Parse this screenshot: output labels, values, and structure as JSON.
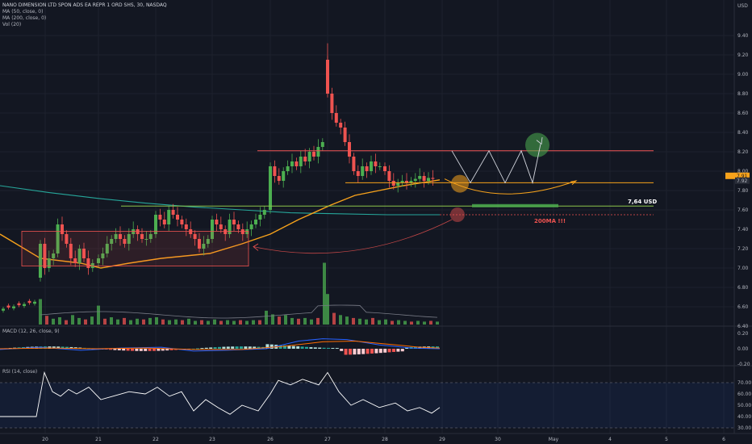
{
  "header": {
    "symbol": "NANO DIMENSION LTD SPON ADS EA REPR 1 ORD SHS, 30, NASDAQ",
    "ind_ma50": "MA (50, close, 0)",
    "ind_ma200": "MA (200, close, 0)",
    "ind_vol": "Vol (20)",
    "macd_label": "MACD (12, 26, close, 9)",
    "rsi_label": "RSI (14, close)"
  },
  "price_axis": {
    "currency": "USD",
    "ticks": [
      "9.40",
      "9.20",
      "9.00",
      "8.80",
      "8.60",
      "8.40",
      "8.20",
      "8.00",
      "7.80",
      "7.60",
      "7.40",
      "7.20",
      "7.00",
      "6.80",
      "6.60",
      "6.40"
    ],
    "tick_values": [
      9.4,
      9.2,
      9.0,
      8.8,
      8.6,
      8.4,
      8.2,
      8.0,
      7.8,
      7.6,
      7.4,
      7.2,
      7.0,
      6.8,
      6.6,
      6.4
    ],
    "last_price_label": "7.92",
    "ma_badge_label": "7.91"
  },
  "macd_axis": {
    "ticks": [
      "0.20",
      "0.00",
      "-0.20"
    ],
    "tick_values": [
      0.2,
      0.0,
      -0.2
    ]
  },
  "rsi_axis": {
    "ticks": [
      "70.00",
      "60.00",
      "50.00",
      "40.00",
      "30.00"
    ],
    "tick_values": [
      70,
      60,
      50,
      40,
      30
    ]
  },
  "time_axis": {
    "labels": [
      "20",
      "21",
      "22",
      "23",
      "26",
      "27",
      "28",
      "29",
      "30",
      "May",
      "4",
      "5",
      "6"
    ],
    "label_x": [
      56,
      122,
      193,
      263,
      335,
      406,
      477,
      548,
      617,
      686,
      756,
      826,
      897
    ]
  },
  "annotations": {
    "support_level": "7,64 USD",
    "ma200_label": "200MA !!!"
  },
  "colors": {
    "background": "#131722",
    "up": "#26a69a",
    "candle_up": "#4caf50",
    "down": "#ef5350",
    "ma50": "#f7a21b",
    "ma200": "#26a69a",
    "resistance": "#f05454",
    "support_green": "#4caf50",
    "text": "#d1d4dc"
  },
  "chart_data": {
    "type": "candlestick",
    "title": "NANO DIMENSION LTD SPON ADS EA REPR 1 ORD SHS, 30, NASDAQ",
    "timeframe": "30 min",
    "y_range": [
      6.3,
      9.5
    ],
    "levels": {
      "resistance": 8.21,
      "mid": 7.88,
      "support": 7.64,
      "ma200_projection": 7.55
    },
    "sessions": [
      {
        "day": "20",
        "start": 50,
        "opens": [
          6.9,
          7.25,
          7.0,
          7.1,
          7.15,
          7.45,
          7.35,
          7.25,
          7.1,
          7.05,
          7.2,
          7.1,
          7.0
        ],
        "closes": [
          7.25,
          7.0,
          7.1,
          7.15,
          7.45,
          7.35,
          7.25,
          7.1,
          7.05,
          7.2,
          7.1,
          7.0,
          7.05
        ]
      },
      {
        "day": "21",
        "start": 122,
        "opens": [
          7.05,
          7.1,
          7.15,
          7.25,
          7.3,
          7.35,
          7.3,
          7.25,
          7.35,
          7.4,
          7.35,
          7.3,
          7.3
        ],
        "closes": [
          7.1,
          7.15,
          7.25,
          7.3,
          7.35,
          7.3,
          7.25,
          7.35,
          7.4,
          7.35,
          7.3,
          7.3,
          7.35
        ]
      },
      {
        "day": "22",
        "start": 193,
        "opens": [
          7.35,
          7.55,
          7.5,
          7.45,
          7.6,
          7.55,
          7.5,
          7.45,
          7.4,
          7.35,
          7.3,
          7.2,
          7.25
        ],
        "closes": [
          7.55,
          7.5,
          7.45,
          7.6,
          7.55,
          7.5,
          7.45,
          7.4,
          7.35,
          7.3,
          7.2,
          7.25,
          7.3
        ]
      },
      {
        "day": "23",
        "start": 263,
        "opens": [
          7.3,
          7.5,
          7.45,
          7.4,
          7.35,
          7.5,
          7.45,
          7.4,
          7.35,
          7.4,
          7.45,
          7.5,
          7.55
        ],
        "closes": [
          7.5,
          7.45,
          7.4,
          7.35,
          7.5,
          7.45,
          7.4,
          7.35,
          7.4,
          7.45,
          7.5,
          7.55,
          7.6
        ]
      },
      {
        "day": "26",
        "start": 335,
        "opens": [
          7.6,
          8.05,
          7.95,
          7.9,
          8.0,
          8.05,
          8.1,
          8.05,
          8.15,
          8.1,
          8.2,
          8.15,
          8.25
        ],
        "closes": [
          8.05,
          7.95,
          7.9,
          8.0,
          8.05,
          8.1,
          8.05,
          8.15,
          8.1,
          8.2,
          8.15,
          8.25,
          8.3
        ]
      },
      {
        "day": "27",
        "start": 406,
        "opens": [
          9.15,
          8.8,
          8.6,
          8.5,
          8.45,
          8.3,
          8.15,
          8.0,
          7.95,
          8.05,
          8.0,
          8.1,
          8.05
        ],
        "closes": [
          8.8,
          8.6,
          8.5,
          8.45,
          8.3,
          8.15,
          8.0,
          7.95,
          8.05,
          8.0,
          8.1,
          8.05,
          8.05
        ]
      },
      {
        "day": "28",
        "start": 477,
        "opens": [
          8.05,
          8.0,
          7.9,
          7.85,
          7.88,
          7.9,
          7.88,
          7.9,
          7.92,
          7.95,
          7.9,
          7.93
        ],
        "closes": [
          8.0,
          7.9,
          7.85,
          7.88,
          7.9,
          7.88,
          7.9,
          7.92,
          7.95,
          7.9,
          7.93,
          7.92
        ]
      }
    ],
    "ma50": [
      [
        0,
        7.35
      ],
      [
        50,
        7.1
      ],
      [
        100,
        7.05
      ],
      [
        125,
        7.0
      ],
      [
        160,
        7.05
      ],
      [
        200,
        7.1
      ],
      [
        260,
        7.15
      ],
      [
        300,
        7.25
      ],
      [
        335,
        7.35
      ],
      [
        370,
        7.5
      ],
      [
        410,
        7.65
      ],
      [
        440,
        7.75
      ],
      [
        470,
        7.8
      ],
      [
        500,
        7.85
      ],
      [
        545,
        7.91
      ]
    ],
    "ma200": [
      [
        0,
        7.85
      ],
      [
        60,
        7.78
      ],
      [
        120,
        7.72
      ],
      [
        180,
        7.67
      ],
      [
        240,
        7.63
      ],
      [
        300,
        7.6
      ],
      [
        360,
        7.57
      ],
      [
        420,
        7.56
      ],
      [
        480,
        7.55
      ],
      [
        545,
        7.55
      ]
    ],
    "macd": [
      [
        0,
        -0.01
      ],
      [
        50,
        0.02
      ],
      [
        100,
        -0.02
      ],
      [
        150,
        0.01
      ],
      [
        200,
        0.02
      ],
      [
        240,
        -0.03
      ],
      [
        280,
        -0.02
      ],
      [
        330,
        0.0
      ],
      [
        370,
        0.1
      ],
      [
        400,
        0.13
      ],
      [
        430,
        0.12
      ],
      [
        470,
        0.05
      ],
      [
        510,
        0.01
      ],
      [
        545,
        0.0
      ]
    ],
    "macd_signal": [
      [
        0,
        0.0
      ],
      [
        60,
        0.01
      ],
      [
        120,
        0.0
      ],
      [
        180,
        0.01
      ],
      [
        240,
        -0.01
      ],
      [
        300,
        -0.01
      ],
      [
        350,
        0.03
      ],
      [
        400,
        0.09
      ],
      [
        440,
        0.1
      ],
      [
        480,
        0.06
      ],
      [
        520,
        0.02
      ],
      [
        545,
        0.01
      ]
    ],
    "rsi": [
      [
        0,
        40
      ],
      [
        45,
        40
      ],
      [
        55,
        79
      ],
      [
        65,
        62
      ],
      [
        75,
        58
      ],
      [
        85,
        64
      ],
      [
        95,
        60
      ],
      [
        110,
        66
      ],
      [
        125,
        55
      ],
      [
        140,
        58
      ],
      [
        160,
        62
      ],
      [
        180,
        60
      ],
      [
        195,
        66
      ],
      [
        210,
        58
      ],
      [
        225,
        62
      ],
      [
        240,
        45
      ],
      [
        255,
        55
      ],
      [
        270,
        48
      ],
      [
        285,
        42
      ],
      [
        300,
        50
      ],
      [
        320,
        45
      ],
      [
        335,
        60
      ],
      [
        345,
        72
      ],
      [
        360,
        68
      ],
      [
        375,
        73
      ],
      [
        395,
        68
      ],
      [
        406,
        79
      ],
      [
        420,
        62
      ],
      [
        435,
        50
      ],
      [
        450,
        55
      ],
      [
        470,
        48
      ],
      [
        490,
        52
      ],
      [
        505,
        45
      ],
      [
        520,
        48
      ],
      [
        535,
        43
      ],
      [
        545,
        48
      ]
    ],
    "volume": [
      [
        50,
        3.5
      ],
      [
        58,
        1.2
      ],
      [
        66,
        0.8
      ],
      [
        74,
        1.0
      ],
      [
        82,
        0.6
      ],
      [
        90,
        1.3
      ],
      [
        98,
        0.9
      ],
      [
        106,
        0.7
      ],
      [
        114,
        1.1
      ],
      [
        122,
        2.6
      ],
      [
        130,
        0.8
      ],
      [
        138,
        1.0
      ],
      [
        146,
        0.7
      ],
      [
        154,
        0.9
      ],
      [
        162,
        0.6
      ],
      [
        170,
        0.8
      ],
      [
        178,
        0.7
      ],
      [
        186,
        0.9
      ],
      [
        194,
        1.0
      ],
      [
        202,
        0.7
      ],
      [
        210,
        0.6
      ],
      [
        218,
        0.7
      ],
      [
        226,
        0.6
      ],
      [
        234,
        0.8
      ],
      [
        242,
        0.5
      ],
      [
        250,
        0.6
      ],
      [
        258,
        0.5
      ],
      [
        266,
        0.7
      ],
      [
        274,
        0.5
      ],
      [
        282,
        0.6
      ],
      [
        290,
        0.5
      ],
      [
        298,
        0.6
      ],
      [
        306,
        0.5
      ],
      [
        314,
        0.6
      ],
      [
        322,
        0.6
      ],
      [
        330,
        1.9
      ],
      [
        338,
        1.4
      ],
      [
        346,
        1.1
      ],
      [
        354,
        1.3
      ],
      [
        362,
        0.9
      ],
      [
        370,
        0.8
      ],
      [
        378,
        0.9
      ],
      [
        386,
        0.7
      ],
      [
        394,
        0.9
      ],
      [
        402,
        8.5
      ],
      [
        406,
        4.2
      ],
      [
        414,
        1.6
      ],
      [
        422,
        1.3
      ],
      [
        430,
        1.1
      ],
      [
        438,
        0.9
      ],
      [
        446,
        0.8
      ],
      [
        454,
        0.7
      ],
      [
        462,
        0.9
      ],
      [
        470,
        0.6
      ],
      [
        478,
        0.7
      ],
      [
        486,
        0.5
      ],
      [
        494,
        0.6
      ],
      [
        502,
        0.5
      ],
      [
        510,
        0.4
      ],
      [
        518,
        0.5
      ],
      [
        526,
        0.4
      ],
      [
        534,
        0.5
      ],
      [
        542,
        0.4
      ]
    ]
  }
}
